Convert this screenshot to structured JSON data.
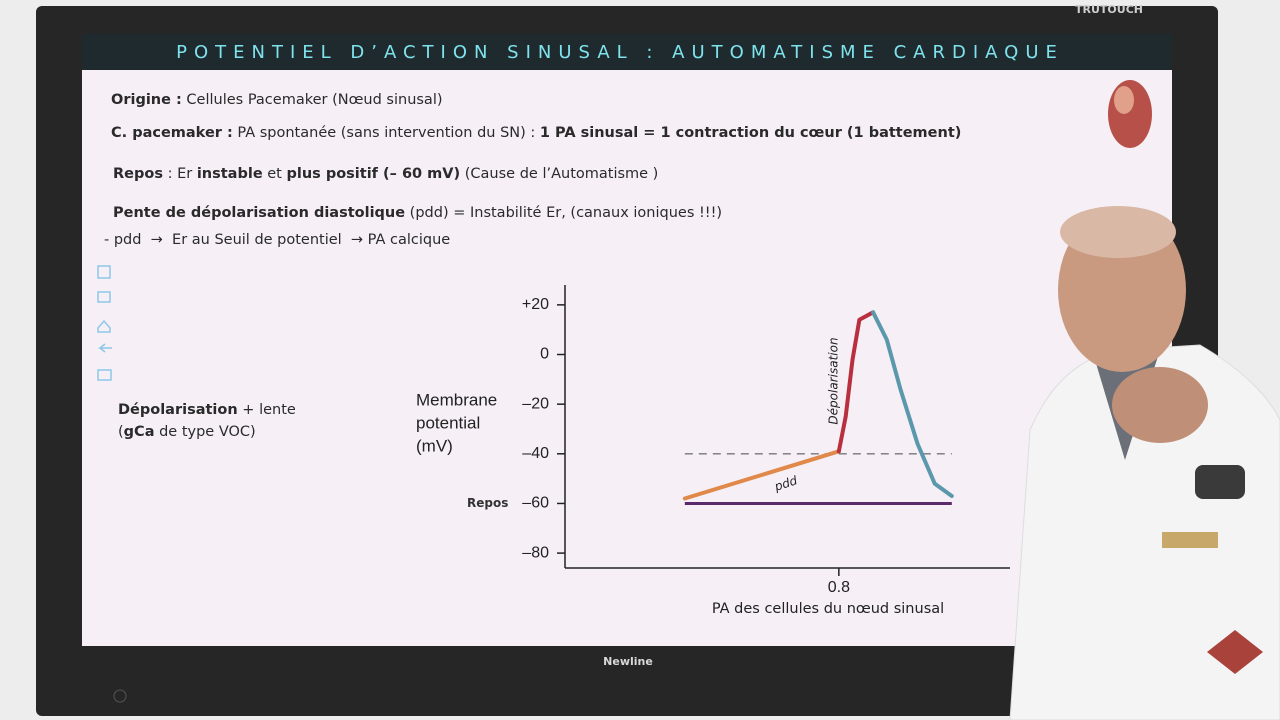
{
  "bezel": {
    "brand": "TRUTOUCH",
    "maker": "Newline"
  },
  "slide": {
    "title": "POTENTIEL D’ACTION SINUSAL : AUTOMATISME CARDIAQUE",
    "lines": [
      [
        {
          "text": "Origine :",
          "bold": true
        },
        {
          "text": " Cellules Pacemaker (Nœud sinusal)",
          "bold": false
        }
      ],
      [
        {
          "text": "C. pacemaker :",
          "bold": true
        },
        {
          "text": " PA spontanée (sans intervention du SN) : ",
          "bold": false
        },
        {
          "text": "1 PA sinusal = 1 contraction du cœur (1 battement)",
          "bold": true
        }
      ],
      [
        {
          "text": "Repos",
          "bold": true
        },
        {
          "text": " : Er ",
          "bold": false
        },
        {
          "text": "instable",
          "bold": true
        },
        {
          "text": " et ",
          "bold": false
        },
        {
          "text": "plus positif (– 60 mV)",
          "bold": true
        },
        {
          "text": " (Cause de l’Automatisme )",
          "bold": false
        }
      ],
      [
        {
          "text": "Pente de dépolarisation diastolique",
          "bold": true
        },
        {
          "text": " (pdd) = Instabilité Er, (canaux ioniques !!!)",
          "bold": false
        }
      ],
      [
        {
          "text": "- pdd  →  Er au Seuil de potentiel  → PA calcique",
          "bold": false
        }
      ]
    ],
    "side_note": [
      [
        {
          "text": "Dépolarisation",
          "bold": true
        },
        {
          "text": " + lente",
          "bold": false
        }
      ],
      [
        {
          "text": "(",
          "bold": false
        },
        {
          "text": "gCa",
          "bold": true
        },
        {
          "text": " de type VOC)",
          "bold": false
        }
      ]
    ]
  },
  "chart_data": {
    "type": "line",
    "y_label": [
      "Membrane",
      "potential",
      "(mV)"
    ],
    "x_label": "PA des cellules du nœud sinusal",
    "xlim": [
      0,
      1.3
    ],
    "xticks": [
      0.8
    ],
    "ylim": [
      -86,
      28
    ],
    "yticks": [
      {
        "value": 20,
        "label": "+20"
      },
      0,
      {
        "value": -20,
        "label": "–20"
      },
      {
        "value": -40,
        "label": "–40"
      },
      {
        "value": -60,
        "label": "–60"
      },
      {
        "value": -80,
        "label": "–80"
      }
    ],
    "series": [
      {
        "name": "pdd",
        "color": "#e0894a",
        "x": [
          0.35,
          0.8
        ],
        "values": [
          -58,
          -39
        ]
      },
      {
        "name": "Dépolarisation",
        "color": "#b8303f",
        "x": [
          0.8,
          0.82,
          0.84,
          0.86,
          0.9
        ],
        "values": [
          -39,
          -25,
          -2,
          14,
          17
        ]
      },
      {
        "color": "#5b98ab",
        "x": [
          0.9,
          0.94,
          0.98,
          1.03,
          1.08,
          1.13
        ],
        "values": [
          17,
          6,
          -14,
          -36,
          -52,
          -57
        ]
      }
    ],
    "reference_lines": [
      {
        "value": -60,
        "label": "Repos",
        "color": "#5a2a6a",
        "dashed": false,
        "x": [
          0.35,
          1.13
        ]
      },
      {
        "value": -40,
        "color": "#777777",
        "dashed": true,
        "x": [
          0.35,
          1.13
        ]
      }
    ]
  }
}
